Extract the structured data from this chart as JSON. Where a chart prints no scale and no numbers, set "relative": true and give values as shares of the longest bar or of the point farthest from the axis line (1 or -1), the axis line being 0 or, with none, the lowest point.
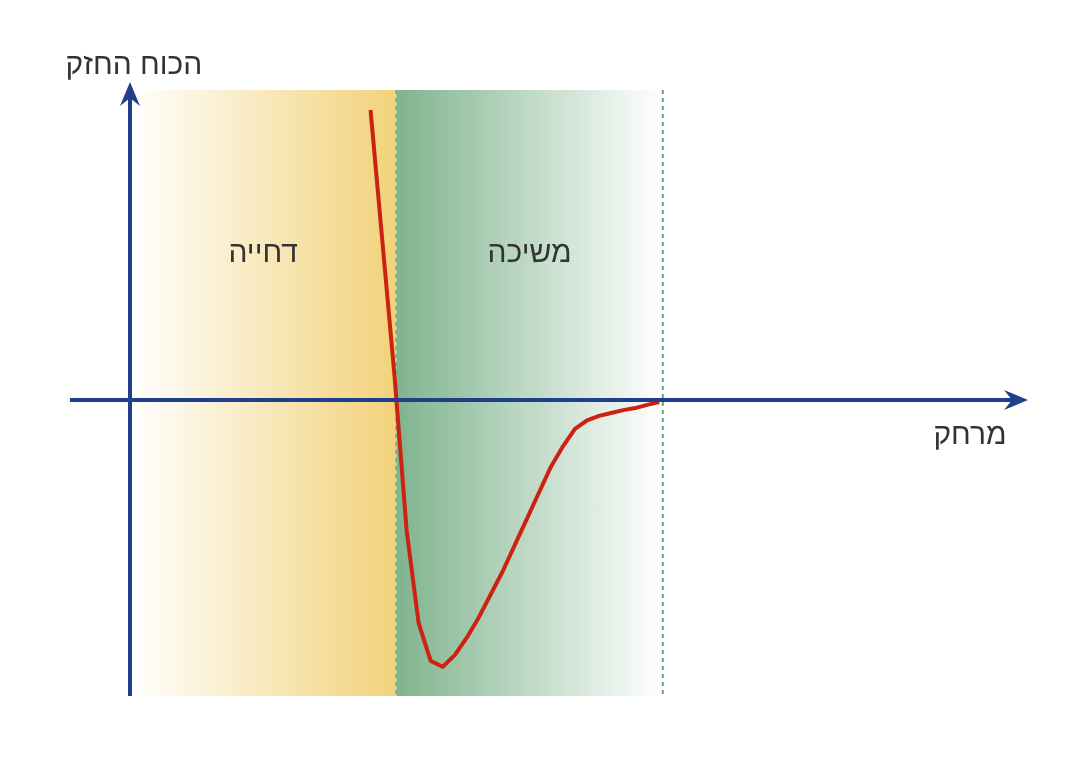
{
  "chart_data": {
    "type": "line",
    "relative": true,
    "xlabel": "מרחק",
    "ylabel": "הכוח החזק",
    "legend": false,
    "marker": "none",
    "line_style": "solid",
    "annotations": [
      "דחייה",
      "משיכה"
    ],
    "ref_lines": [
      {
        "axis": "y",
        "value": 0,
        "color": "#1f3f8a"
      }
    ],
    "categories": [
      null,
      null,
      null,
      null,
      null,
      null,
      null,
      null,
      null,
      null,
      null,
      null,
      null,
      null,
      null,
      null,
      null,
      null,
      null,
      null,
      null,
      null,
      null,
      null,
      null,
      null,
      null,
      null,
      null,
      null,
      null,
      null,
      null,
      null,
      null,
      null,
      null,
      null,
      null,
      null,
      null,
      null,
      null,
      null,
      null,
      null,
      null,
      null,
      null,
      null,
      null,
      null,
      null,
      null,
      null,
      null,
      null,
      null,
      null,
      null,
      null,
      null,
      null,
      null,
      null,
      null,
      null,
      null,
      null,
      null,
      null,
      null,
      null,
      null,
      null
    ],
    "series": [
      {
        "color": "#cc2211",
        "values": [
          null,
          null,
          null,
          null,
          null,
          null,
          null,
          null,
          null,
          null,
          null,
          null,
          null,
          null,
          null,
          null,
          null,
          null,
          null,
          null,
          1.0,
          0.54,
          0.08,
          -0.45,
          -0.77,
          -0.9,
          -0.92,
          -0.88,
          -0.82,
          -0.75,
          -0.67,
          -0.59,
          -0.5,
          -0.41,
          -0.32,
          -0.23,
          -0.16,
          -0.1,
          -0.07,
          -0.055,
          -0.045,
          -0.035,
          -0.028,
          -0.017,
          -0.007,
          null,
          null,
          null,
          null,
          null,
          null,
          null,
          null,
          null,
          null,
          null,
          null,
          null,
          null,
          null,
          null,
          null,
          null,
          null,
          null,
          null,
          null,
          null,
          null,
          null,
          null,
          null,
          null,
          null,
          null
        ]
      }
    ]
  }
}
